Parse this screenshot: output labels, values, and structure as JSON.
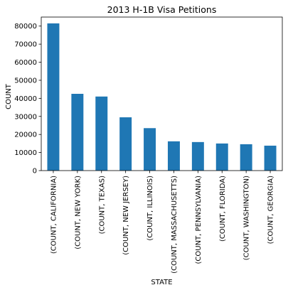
{
  "chart_data": {
    "type": "bar",
    "title": "2013 H-1B Visa Petitions",
    "xlabel": "STATE",
    "ylabel": "COUNT",
    "categories": [
      "(COUNT,  CALIFORNIA)",
      "(COUNT,  NEW YORK)",
      "(COUNT,  TEXAS)",
      "(COUNT,  NEW JERSEY)",
      "(COUNT,  ILLINOIS)",
      "(COUNT,  MASSACHUSETTS)",
      "(COUNT,  PENNSYLVANIA)",
      "(COUNT,  FLORIDA)",
      "(COUNT,  WASHINGTON)",
      "(COUNT,  GEORGIA)"
    ],
    "values": [
      81500,
      42500,
      41000,
      29500,
      23500,
      16200,
      15800,
      15000,
      14600,
      13800
    ],
    "ylim": [
      0,
      85000
    ],
    "yticks": [
      0,
      10000,
      20000,
      30000,
      40000,
      50000,
      60000,
      70000,
      80000
    ],
    "bar_color": "#1f77b4",
    "grid": false,
    "legend": "none"
  }
}
